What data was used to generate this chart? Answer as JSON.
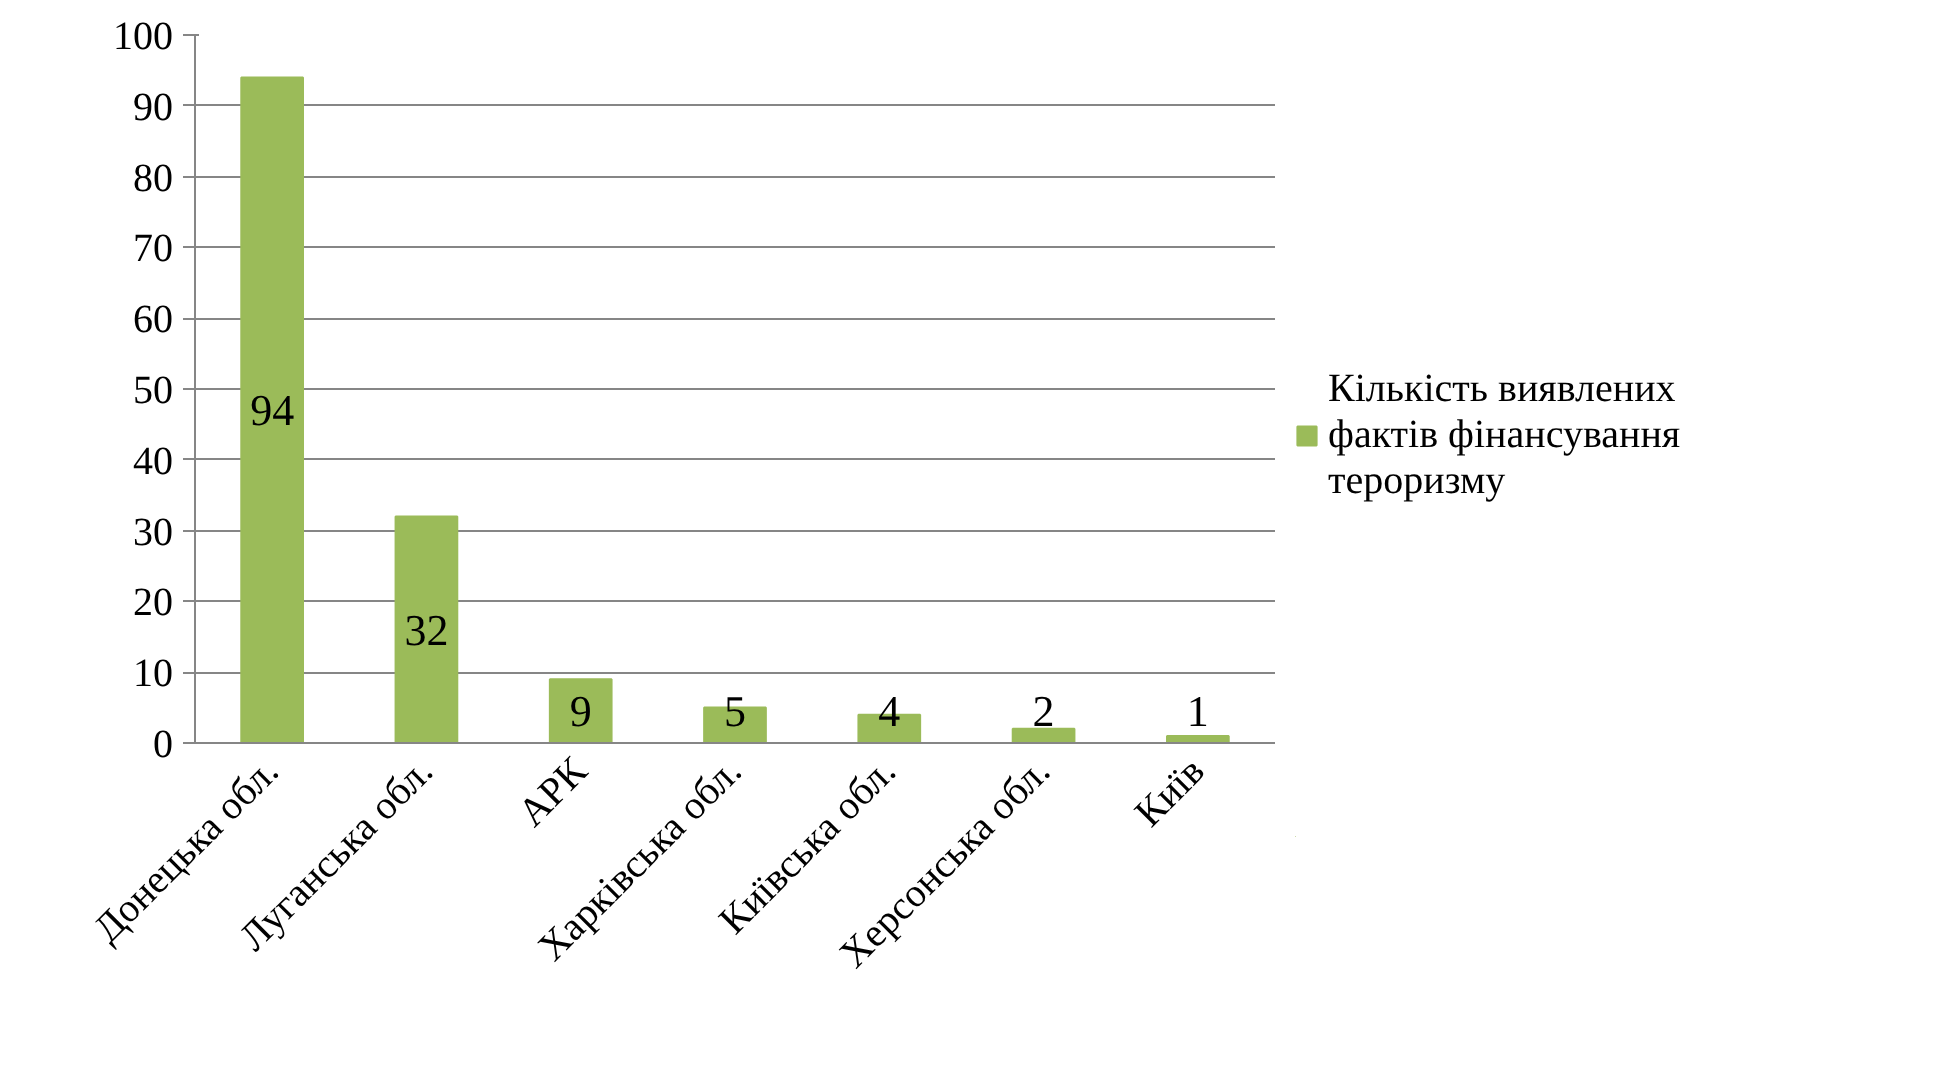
{
  "chart_data": {
    "type": "bar",
    "categories": [
      "Донецька обл.",
      "Луганська обл.",
      "АРК",
      "Харківська обл.",
      "Київська обл.",
      "Херсонська обл.",
      "Київ"
    ],
    "series": [
      {
        "name": "Кількість виявлених фактів фінансування тероризму",
        "color": "#9bbb59",
        "values": [
          94,
          32,
          9,
          5,
          4,
          2,
          1
        ]
      }
    ],
    "ylim": [
      0,
      100
    ],
    "yticks": [
      0,
      10,
      20,
      30,
      40,
      50,
      60,
      70,
      80,
      90,
      100
    ],
    "grid": "y",
    "legend": "right",
    "data_labels": true
  }
}
